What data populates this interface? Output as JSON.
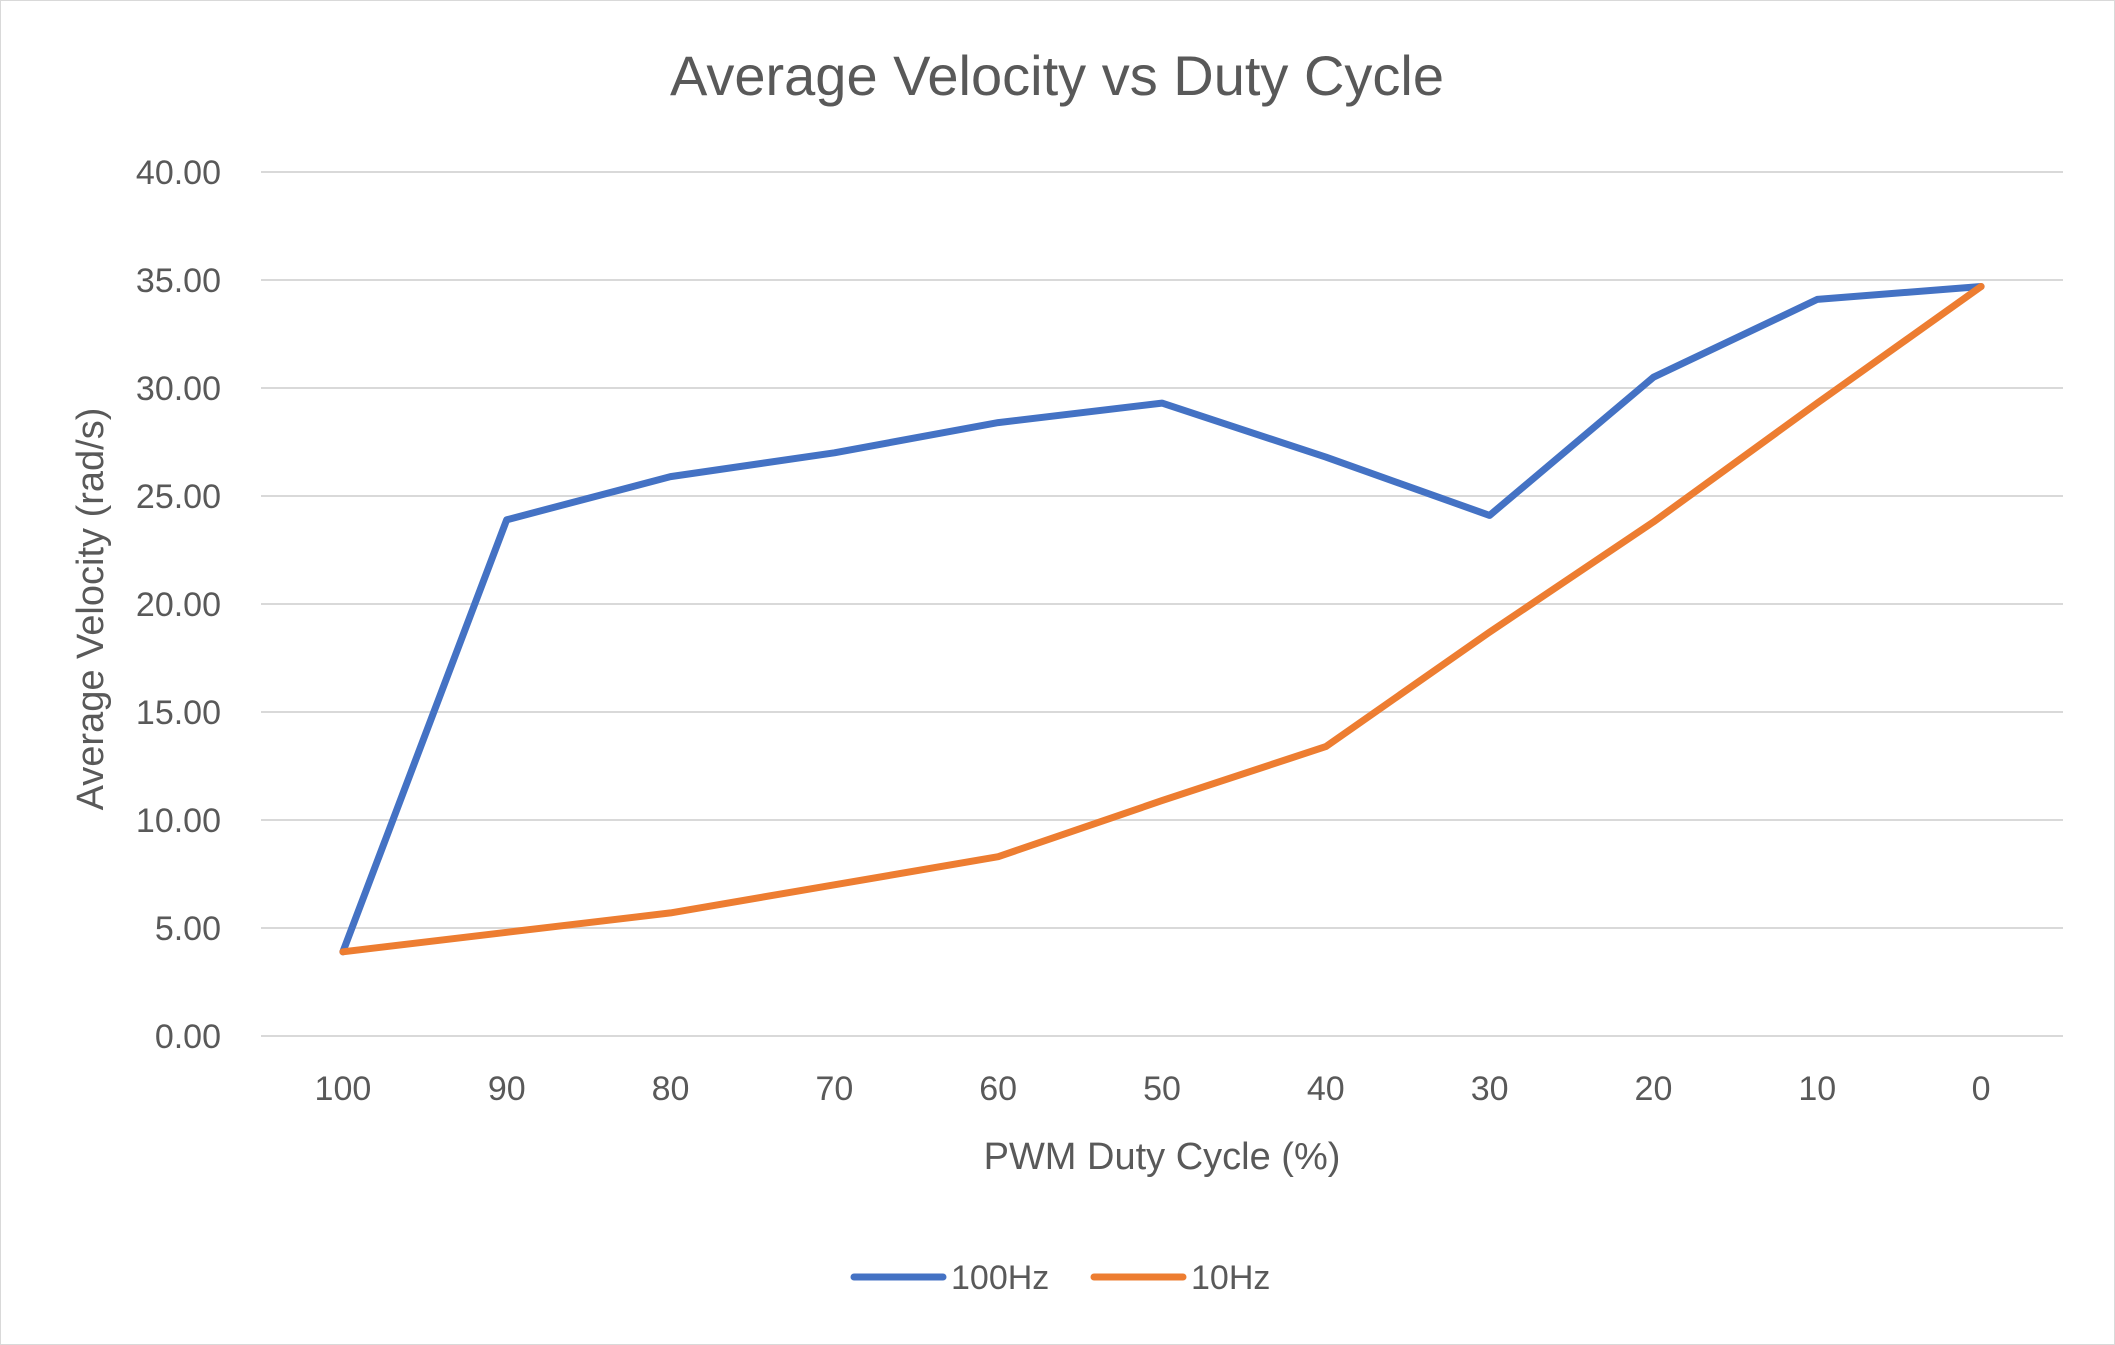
{
  "chart_data": {
    "type": "line",
    "title": "Average Velocity vs Duty Cycle",
    "xlabel": "PWM Duty Cycle (%)",
    "ylabel": "Average Velocity (rad/s)",
    "categories": [
      "100",
      "90",
      "80",
      "70",
      "60",
      "50",
      "40",
      "30",
      "20",
      "10",
      "0"
    ],
    "yticks": [
      "0.00",
      "5.00",
      "10.00",
      "15.00",
      "20.00",
      "25.00",
      "30.00",
      "35.00",
      "40.00"
    ],
    "ylim": [
      0,
      40
    ],
    "grid": true,
    "legend_position": "bottom",
    "series": [
      {
        "name": "100Hz",
        "color": "#4472c4",
        "values": [
          3.9,
          23.9,
          25.9,
          27.0,
          28.4,
          29.3,
          26.8,
          24.1,
          30.5,
          34.1,
          34.7
        ]
      },
      {
        "name": "10Hz",
        "color": "#ed7d31",
        "values": [
          3.9,
          4.8,
          5.7,
          7.0,
          8.3,
          10.9,
          13.4,
          18.7,
          23.8,
          29.3,
          34.7
        ]
      }
    ]
  }
}
